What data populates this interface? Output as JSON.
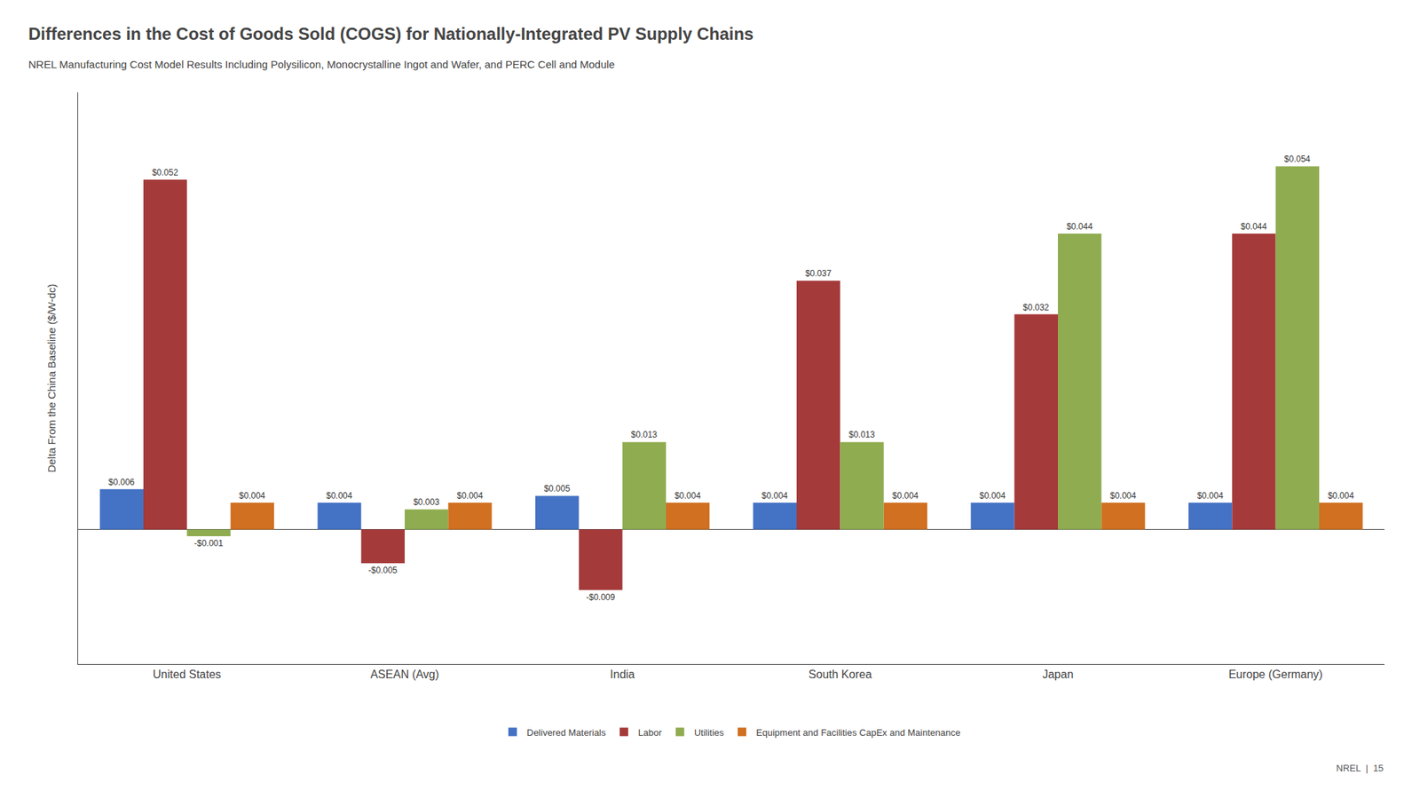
{
  "chart_data": {
    "type": "bar",
    "title": "Differences in the Cost of Goods Sold (COGS) for Nationally-Integrated PV Supply Chains",
    "subtitle": "NREL Manufacturing Cost Model Results Including Polysilicon, Monocrystalline Ingot and Wafer, and PERC Cell and Module",
    "ylabel": "Delta From the China Baseline ($/W-dc)",
    "categories": [
      "United States",
      "ASEAN (Avg)",
      "India",
      "South Korea",
      "Japan",
      "Europe (Germany)"
    ],
    "series": [
      {
        "name": "Delivered Materials",
        "color": "#4472c4",
        "values": [
          0.006,
          0.004,
          0.005,
          0.004,
          0.004,
          0.004
        ],
        "value_labels": [
          "$0.006",
          "$0.004",
          "$0.005",
          "$0.004",
          "$0.004",
          "$0.004"
        ]
      },
      {
        "name": "Labor",
        "color": "#a53a3a",
        "values": [
          0.052,
          -0.005,
          -0.009,
          0.037,
          0.032,
          0.044
        ],
        "value_labels": [
          "$0.052",
          "-$0.005",
          "-$0.009",
          "$0.037",
          "$0.032",
          "$0.044"
        ]
      },
      {
        "name": "Utilities",
        "color": "#8fac50",
        "values": [
          -0.001,
          0.003,
          0.013,
          0.013,
          0.044,
          0.054
        ],
        "value_labels": [
          "-$0.001",
          "$0.003",
          "$0.013",
          "$0.013",
          "$0.044",
          "$0.054"
        ]
      },
      {
        "name": "Equipment and Facilities CapEx and Maintenance",
        "color": "#d07020",
        "values": [
          0.004,
          0.004,
          0.004,
          0.004,
          0.004,
          0.004
        ],
        "value_labels": [
          "$0.004",
          "$0.004",
          "$0.004",
          "$0.004",
          "$0.004",
          "$0.004"
        ]
      }
    ],
    "ylim": [
      -0.02,
      0.065
    ],
    "yticks": [],
    "tick_labels": "x",
    "grid": false,
    "legend": "bottom",
    "data_labels": true,
    "annotations": [
      "NREL  |  15"
    ]
  }
}
